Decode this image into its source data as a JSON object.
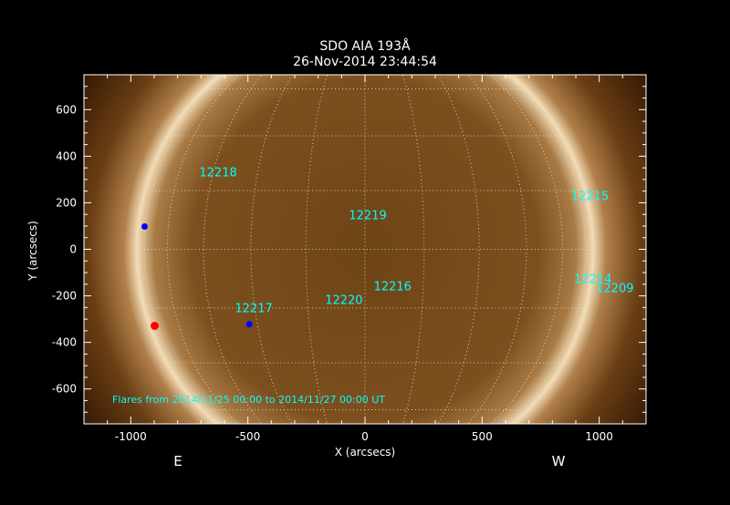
{
  "chart_data": {
    "type": "image",
    "title": "SDO AIA 193Å",
    "subtitle": "26-Nov-2014 23:44:54",
    "xlabel": "X (arcsecs)",
    "ylabel": "Y (arcsecs)",
    "xlim": [
      -1200,
      1200
    ],
    "ylim": [
      -750,
      750
    ],
    "xticks": [
      -1000,
      -500,
      0,
      500,
      1000
    ],
    "yticks": [
      -600,
      -400,
      -200,
      0,
      200,
      400,
      600
    ],
    "grid": "heliographic, 15 degree spacing, dotted",
    "solar_radius_arcsec": 975,
    "direction_labels": {
      "east": "E",
      "west": "W"
    },
    "footnote": "Flares from 2014/11/25 00:00 to 2014/11/27 00:00 UT",
    "region_labels": [
      {
        "text": "12218",
        "x": -627,
        "y": 333
      },
      {
        "text": "12219",
        "x": 12,
        "y": 149
      },
      {
        "text": "12215",
        "x": 961,
        "y": 231
      },
      {
        "text": "12214",
        "x": 973,
        "y": -125
      },
      {
        "text": "12209",
        "x": 1067,
        "y": -165
      },
      {
        "text": "12216",
        "x": 118,
        "y": -157
      },
      {
        "text": "12220",
        "x": -90,
        "y": -216
      },
      {
        "text": "12217",
        "x": -475,
        "y": -251
      }
    ],
    "flare_markers": [
      {
        "x": -941,
        "y": 98,
        "color": "#0000ff"
      },
      {
        "x": -494,
        "y": -322,
        "color": "#0000ff"
      },
      {
        "x": -898,
        "y": -329,
        "color": "#ff0000"
      }
    ],
    "colors": {
      "label": "#00ffff",
      "axes": "#ffffff",
      "grid": "#f0e0c0"
    }
  }
}
